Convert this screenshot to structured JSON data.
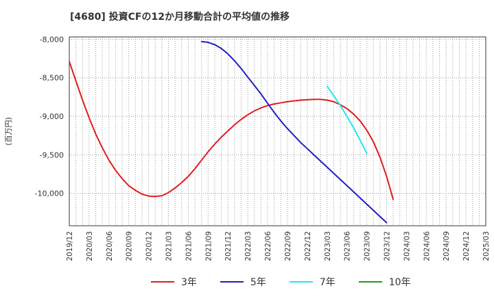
{
  "chart_data": {
    "type": "line",
    "title": "[4680]  投資CFの12か月移動合計の平均値の推移",
    "ylabel": "(百万円)",
    "xlabel": "",
    "ylim": [
      -10420,
      -7970
    ],
    "yticks": [
      -8000,
      -8500,
      -9000,
      -9500,
      -10000
    ],
    "ytick_labels": [
      "-8,000",
      "-8,500",
      "-9,000",
      "-9,500",
      "-10,000"
    ],
    "x_range": [
      "2019/12",
      "2025/03"
    ],
    "x_ticks": [
      "2019/12",
      "2020/03",
      "2020/06",
      "2020/09",
      "2020/12",
      "2021/03",
      "2021/06",
      "2021/09",
      "2021/12",
      "2022/03",
      "2022/06",
      "2022/09",
      "2022/12",
      "2023/03",
      "2023/06",
      "2023/09",
      "2023/12",
      "2024/03",
      "2024/06",
      "2024/09",
      "2024/12",
      "2025/03"
    ],
    "grid": true,
    "series": [
      {
        "name": "3年",
        "color": "#e31a1c",
        "points": [
          [
            "2019/12",
            -8290
          ],
          [
            "2020/01",
            -8540
          ],
          [
            "2020/02",
            -8790
          ],
          [
            "2020/03",
            -9020
          ],
          [
            "2020/04",
            -9230
          ],
          [
            "2020/05",
            -9410
          ],
          [
            "2020/06",
            -9570
          ],
          [
            "2020/07",
            -9700
          ],
          [
            "2020/08",
            -9810
          ],
          [
            "2020/09",
            -9900
          ],
          [
            "2020/10",
            -9960
          ],
          [
            "2020/11",
            -10010
          ],
          [
            "2020/12",
            -10035
          ],
          [
            "2021/01",
            -10040
          ],
          [
            "2021/02",
            -10030
          ],
          [
            "2021/03",
            -9990
          ],
          [
            "2021/04",
            -9930
          ],
          [
            "2021/05",
            -9860
          ],
          [
            "2021/06",
            -9780
          ],
          [
            "2021/07",
            -9680
          ],
          [
            "2021/08",
            -9570
          ],
          [
            "2021/09",
            -9460
          ],
          [
            "2021/10",
            -9360
          ],
          [
            "2021/11",
            -9270
          ],
          [
            "2021/12",
            -9190
          ],
          [
            "2022/01",
            -9110
          ],
          [
            "2022/02",
            -9040
          ],
          [
            "2022/03",
            -8980
          ],
          [
            "2022/04",
            -8930
          ],
          [
            "2022/05",
            -8890
          ],
          [
            "2022/06",
            -8860
          ],
          [
            "2022/07",
            -8840
          ],
          [
            "2022/08",
            -8825
          ],
          [
            "2022/09",
            -8810
          ],
          [
            "2022/10",
            -8800
          ],
          [
            "2022/11",
            -8790
          ],
          [
            "2022/12",
            -8785
          ],
          [
            "2023/01",
            -8780
          ],
          [
            "2023/02",
            -8780
          ],
          [
            "2023/03",
            -8790
          ],
          [
            "2023/04",
            -8810
          ],
          [
            "2023/05",
            -8850
          ],
          [
            "2023/06",
            -8900
          ],
          [
            "2023/07",
            -8970
          ],
          [
            "2023/08",
            -9060
          ],
          [
            "2023/09",
            -9180
          ],
          [
            "2023/10",
            -9330
          ],
          [
            "2023/11",
            -9530
          ],
          [
            "2023/12",
            -9780
          ],
          [
            "2024/01",
            -10080
          ]
        ]
      },
      {
        "name": "5年",
        "color": "#1f1fbf",
        "points": [
          [
            "2021/08",
            -8030
          ],
          [
            "2021/09",
            -8040
          ],
          [
            "2021/10",
            -8070
          ],
          [
            "2021/11",
            -8120
          ],
          [
            "2021/12",
            -8190
          ],
          [
            "2022/01",
            -8280
          ],
          [
            "2022/02",
            -8380
          ],
          [
            "2022/03",
            -8490
          ],
          [
            "2022/04",
            -8600
          ],
          [
            "2022/05",
            -8710
          ],
          [
            "2022/06",
            -8830
          ],
          [
            "2022/07",
            -8950
          ],
          [
            "2022/08",
            -9060
          ],
          [
            "2022/09",
            -9160
          ],
          [
            "2022/10",
            -9250
          ],
          [
            "2022/11",
            -9340
          ],
          [
            "2022/12",
            -9420
          ],
          [
            "2023/01",
            -9500
          ],
          [
            "2023/02",
            -9580
          ],
          [
            "2023/03",
            -9660
          ],
          [
            "2023/04",
            -9740
          ],
          [
            "2023/05",
            -9820
          ],
          [
            "2023/06",
            -9900
          ],
          [
            "2023/07",
            -9980
          ],
          [
            "2023/08",
            -10060
          ],
          [
            "2023/09",
            -10140
          ],
          [
            "2023/10",
            -10220
          ],
          [
            "2023/11",
            -10300
          ],
          [
            "2023/12",
            -10380
          ]
        ]
      },
      {
        "name": "7年",
        "color": "#22e6f0",
        "points": [
          [
            "2023/03",
            -8610
          ],
          [
            "2023/04",
            -8730
          ],
          [
            "2023/05",
            -8860
          ],
          [
            "2023/06",
            -9000
          ],
          [
            "2023/07",
            -9150
          ],
          [
            "2023/08",
            -9310
          ],
          [
            "2023/09",
            -9480
          ]
        ]
      },
      {
        "name": "10年",
        "color": "#1a9a1a",
        "points": []
      }
    ]
  }
}
